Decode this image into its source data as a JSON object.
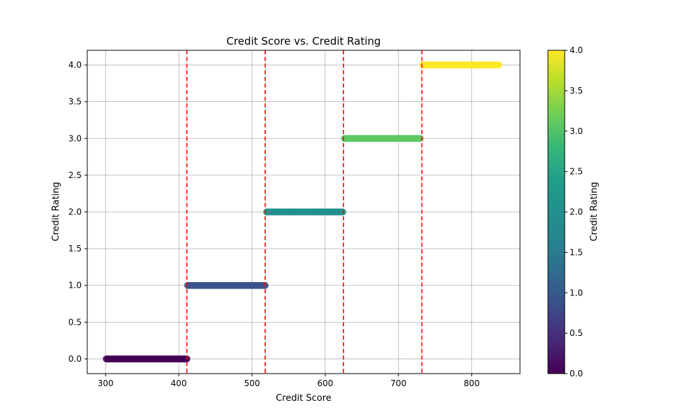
{
  "chart_data": {
    "type": "scatter",
    "title": "Credit Score vs. Credit Rating",
    "xlabel": "Credit Score",
    "ylabel": "Credit Rating",
    "xlim": [
      275,
      866
    ],
    "ylim": [
      -0.2,
      4.2
    ],
    "xticks": [
      300,
      400,
      500,
      600,
      700,
      800
    ],
    "yticks": [
      0.0,
      0.5,
      1.0,
      1.5,
      2.0,
      2.5,
      3.0,
      3.5,
      4.0
    ],
    "grid": true,
    "colormap": "viridis",
    "colorbar": {
      "label": "Credit Rating",
      "range": [
        0.0,
        4.0
      ],
      "ticks": [
        0.0,
        0.5,
        1.0,
        1.5,
        2.0,
        2.5,
        3.0,
        3.5,
        4.0
      ]
    },
    "thresholds": {
      "color": "#ff0000",
      "style": "dashed",
      "x": [
        411,
        518,
        625,
        732
      ]
    },
    "series": [
      {
        "rating": 0,
        "x_start": 301,
        "x_end": 411,
        "step": 2,
        "color": "#440154"
      },
      {
        "rating": 1,
        "x_start": 412,
        "x_end": 518,
        "step": 2,
        "color": "#3b528b"
      },
      {
        "rating": 2,
        "x_start": 520,
        "x_end": 625,
        "step": 2,
        "color": "#21908d"
      },
      {
        "rating": 3,
        "x_start": 626,
        "x_end": 731,
        "step": 2,
        "color": "#5dc863"
      },
      {
        "rating": 4,
        "x_start": 733,
        "x_end": 838,
        "step": 2,
        "color": "#fde725"
      }
    ]
  }
}
